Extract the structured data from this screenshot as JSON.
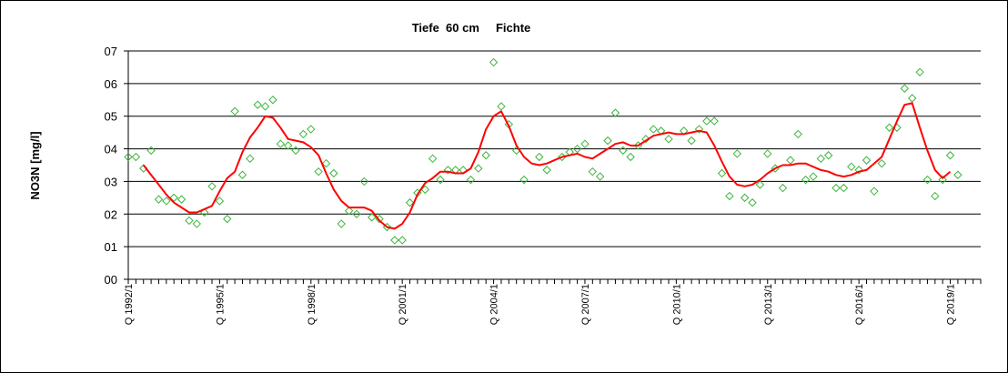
{
  "chart_data": {
    "type": "scatter",
    "title": "Tiefe  60 cm     Fichte",
    "xlabel": "",
    "ylabel": "NO3N [mg/l]",
    "xlim": [
      1992.0,
      2020.0
    ],
    "ylim": [
      0,
      7
    ],
    "yticks": [
      0,
      1,
      2,
      3,
      4,
      5,
      6,
      7
    ],
    "ytick_labels": [
      "00",
      "01",
      "02",
      "03",
      "04",
      "05",
      "06",
      "07"
    ],
    "xtick_labels": [
      "Q 1992/1",
      "Q 1995/1",
      "Q 1998/1",
      "Q 2001/1",
      "Q 2004/1",
      "Q 2007/1",
      "Q 2010/1",
      "Q 2013/1",
      "Q 2016/1",
      "Q 2019/1"
    ],
    "xtick_values": [
      1992,
      1995,
      1998,
      2001,
      2004,
      2007,
      2010,
      2013,
      2016,
      2019
    ],
    "grid": "horizontal",
    "colors": {
      "points": "#3cb43c",
      "trend": "#ff0000",
      "grid": "#000000",
      "plot_bg": "#ffffff"
    },
    "series": [
      {
        "type": "scatter",
        "marker": "diamond",
        "x": [
          1992.0,
          1992.25,
          1992.5,
          1992.75,
          1993.0,
          1993.25,
          1993.5,
          1993.75,
          1994.0,
          1994.25,
          1994.5,
          1994.75,
          1995.0,
          1995.25,
          1995.5,
          1995.75,
          1996.0,
          1996.25,
          1996.5,
          1996.75,
          1997.0,
          1997.25,
          1997.5,
          1997.75,
          1998.0,
          1998.25,
          1998.5,
          1998.75,
          1999.0,
          1999.25,
          1999.5,
          1999.75,
          2000.0,
          2000.25,
          2000.5,
          2000.75,
          2001.0,
          2001.25,
          2001.5,
          2001.75,
          2002.0,
          2002.25,
          2002.5,
          2002.75,
          2003.0,
          2003.25,
          2003.5,
          2003.75,
          2004.0,
          2004.25,
          2004.5,
          2004.75,
          2005.0,
          2005.5,
          2005.75,
          2006.25,
          2006.5,
          2006.75,
          2007.0,
          2007.25,
          2007.5,
          2007.75,
          2008.0,
          2008.25,
          2008.5,
          2008.75,
          2009.0,
          2009.25,
          2009.5,
          2009.75,
          2010.25,
          2010.5,
          2010.75,
          2011.0,
          2011.25,
          2011.5,
          2011.75,
          2012.0,
          2012.25,
          2012.5,
          2012.75,
          2013.0,
          2013.25,
          2013.5,
          2013.75,
          2014.0,
          2014.25,
          2014.5,
          2014.75,
          2015.0,
          2015.25,
          2015.5,
          2015.75,
          2016.0,
          2016.25,
          2016.5,
          2016.75,
          2017.0,
          2017.25,
          2017.5,
          2017.75,
          2018.0,
          2018.25,
          2018.5,
          2018.75,
          2019.0,
          2019.25
        ],
        "y": [
          3.75,
          3.75,
          3.4,
          3.95,
          2.45,
          2.4,
          2.5,
          2.45,
          1.8,
          1.7,
          2.05,
          2.85,
          2.4,
          1.85,
          5.15,
          3.2,
          3.7,
          5.35,
          5.3,
          5.5,
          4.15,
          4.1,
          3.95,
          4.45,
          4.6,
          3.3,
          3.55,
          3.25,
          1.7,
          2.1,
          2.0,
          3.0,
          1.9,
          1.85,
          1.6,
          1.2,
          1.2,
          2.35,
          2.65,
          2.75,
          3.7,
          3.05,
          3.35,
          3.35,
          3.35,
          3.05,
          3.4,
          3.8,
          6.65,
          5.3,
          4.75,
          3.95,
          3.05,
          3.75,
          3.35,
          3.75,
          3.9,
          4.0,
          4.15,
          3.3,
          3.15,
          4.25,
          5.1,
          3.95,
          3.75,
          4.1,
          4.3,
          4.6,
          4.55,
          4.3,
          4.55,
          4.25,
          4.6,
          4.85,
          4.85,
          3.25,
          2.55,
          3.85,
          2.5,
          2.35,
          2.9,
          3.85,
          3.4,
          2.8,
          3.65,
          4.45,
          3.05,
          3.15,
          3.7,
          3.8,
          2.8,
          2.8,
          3.45,
          3.35,
          3.65,
          2.7,
          3.55,
          4.65,
          4.65,
          5.85,
          5.55,
          6.35,
          3.05,
          2.55,
          3.05,
          3.8,
          3.2
        ]
      },
      {
        "type": "line",
        "x": [
          1992.5,
          1992.75,
          1993.0,
          1993.25,
          1993.5,
          1993.75,
          1994.0,
          1994.25,
          1994.5,
          1994.75,
          1995.0,
          1995.25,
          1995.5,
          1995.75,
          1996.0,
          1996.25,
          1996.5,
          1996.75,
          1997.0,
          1997.25,
          1997.5,
          1997.75,
          1998.0,
          1998.25,
          1998.5,
          1998.75,
          1999.0,
          1999.25,
          1999.5,
          1999.75,
          2000.0,
          2000.25,
          2000.5,
          2000.75,
          2001.0,
          2001.25,
          2001.5,
          2001.75,
          2002.0,
          2002.25,
          2002.5,
          2002.75,
          2003.0,
          2003.25,
          2003.5,
          2003.75,
          2004.0,
          2004.25,
          2004.5,
          2004.75,
          2005.0,
          2005.25,
          2005.5,
          2005.75,
          2006.0,
          2006.25,
          2006.5,
          2006.75,
          2007.0,
          2007.25,
          2007.5,
          2007.75,
          2008.0,
          2008.25,
          2008.5,
          2008.75,
          2009.0,
          2009.25,
          2009.5,
          2009.75,
          2010.0,
          2010.25,
          2010.5,
          2010.75,
          2011.0,
          2011.25,
          2011.5,
          2011.75,
          2012.0,
          2012.25,
          2012.5,
          2012.75,
          2013.0,
          2013.25,
          2013.5,
          2013.75,
          2014.0,
          2014.25,
          2014.5,
          2014.75,
          2015.0,
          2015.25,
          2015.5,
          2015.75,
          2016.0,
          2016.25,
          2016.5,
          2016.75,
          2017.0,
          2017.25,
          2017.5,
          2017.75,
          2018.0,
          2018.25,
          2018.5,
          2018.75,
          2019.0
        ],
        "y": [
          3.5,
          3.2,
          2.9,
          2.6,
          2.35,
          2.2,
          2.05,
          2.05,
          2.15,
          2.25,
          2.7,
          3.1,
          3.3,
          3.9,
          4.35,
          4.65,
          5.0,
          4.95,
          4.65,
          4.3,
          4.25,
          4.2,
          4.05,
          3.8,
          3.25,
          2.75,
          2.4,
          2.2,
          2.2,
          2.2,
          2.1,
          1.8,
          1.6,
          1.55,
          1.7,
          2.05,
          2.6,
          2.95,
          3.1,
          3.3,
          3.3,
          3.25,
          3.25,
          3.4,
          3.9,
          4.6,
          5.0,
          5.15,
          4.7,
          4.1,
          3.75,
          3.55,
          3.5,
          3.55,
          3.65,
          3.75,
          3.8,
          3.85,
          3.75,
          3.7,
          3.85,
          4.0,
          4.15,
          4.2,
          4.1,
          4.1,
          4.25,
          4.4,
          4.45,
          4.5,
          4.45,
          4.45,
          4.5,
          4.55,
          4.5,
          4.1,
          3.6,
          3.15,
          2.9,
          2.85,
          2.9,
          3.05,
          3.25,
          3.4,
          3.5,
          3.5,
          3.55,
          3.55,
          3.45,
          3.35,
          3.3,
          3.2,
          3.15,
          3.2,
          3.3,
          3.35,
          3.55,
          3.75,
          4.3,
          4.85,
          5.35,
          5.4,
          4.65,
          3.95,
          3.35,
          3.1,
          3.3
        ]
      }
    ]
  }
}
